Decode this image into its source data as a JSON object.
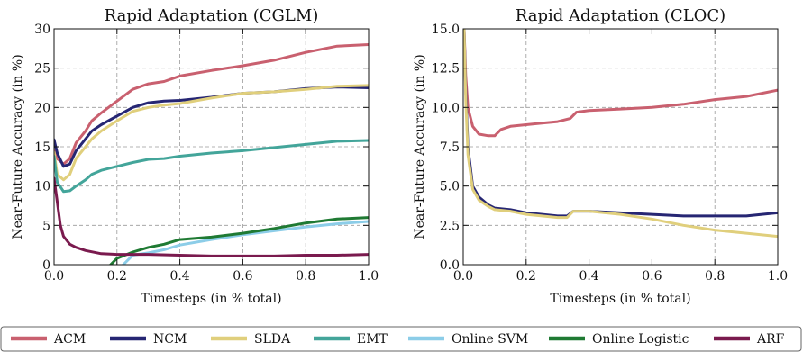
{
  "legend": {
    "items": [
      {
        "name": "ACM",
        "color": "#c9606f"
      },
      {
        "name": "NCM",
        "color": "#262673"
      },
      {
        "name": "SLDA",
        "color": "#e0cf7c"
      },
      {
        "name": "EMT",
        "color": "#43a59a"
      },
      {
        "name": "Online SVM",
        "color": "#8ccde8"
      },
      {
        "name": "Online Logistic",
        "color": "#1f7a33"
      },
      {
        "name": "ARF",
        "color": "#7a1a4e"
      }
    ]
  },
  "chart_data": [
    {
      "type": "line",
      "title": "Rapid Adaptation (CGLM)",
      "xlabel": "Timesteps (in % total)",
      "ylabel": "Near-Future Accuracy (in %)",
      "xlim": [
        0.0,
        1.0
      ],
      "ylim": [
        0,
        30
      ],
      "xticks": [
        "0.0",
        "0.2",
        "0.4",
        "0.6",
        "0.8",
        "1.0"
      ],
      "yticks": [
        "0",
        "5",
        "10",
        "15",
        "20",
        "25",
        "30"
      ],
      "grid": true,
      "series": [
        {
          "name": "ACM",
          "x": [
            0.0,
            0.01,
            0.03,
            0.05,
            0.07,
            0.1,
            0.12,
            0.15,
            0.2,
            0.25,
            0.3,
            0.35,
            0.4,
            0.5,
            0.6,
            0.7,
            0.8,
            0.9,
            1.0
          ],
          "y": [
            14.5,
            13.5,
            12.8,
            13.5,
            15.5,
            17.0,
            18.3,
            19.3,
            20.8,
            22.3,
            23.0,
            23.3,
            24.0,
            24.7,
            25.3,
            26.0,
            27.0,
            27.8,
            28.0
          ]
        },
        {
          "name": "NCM",
          "x": [
            0.0,
            0.01,
            0.03,
            0.05,
            0.07,
            0.1,
            0.12,
            0.15,
            0.2,
            0.25,
            0.3,
            0.35,
            0.4,
            0.5,
            0.6,
            0.7,
            0.8,
            0.9,
            1.0
          ],
          "y": [
            15.9,
            14.2,
            12.5,
            12.8,
            14.5,
            16.0,
            17.0,
            17.8,
            18.9,
            20.0,
            20.6,
            20.8,
            20.9,
            21.3,
            21.8,
            22.0,
            22.4,
            22.6,
            22.5
          ]
        },
        {
          "name": "SLDA",
          "x": [
            0.0,
            0.01,
            0.03,
            0.05,
            0.07,
            0.1,
            0.12,
            0.15,
            0.2,
            0.25,
            0.3,
            0.35,
            0.4,
            0.5,
            0.6,
            0.7,
            0.8,
            0.9,
            1.0
          ],
          "y": [
            14.3,
            11.5,
            10.8,
            11.5,
            13.5,
            15.0,
            16.0,
            17.0,
            18.3,
            19.5,
            20.0,
            20.3,
            20.5,
            21.2,
            21.8,
            22.0,
            22.3,
            22.7,
            22.8
          ]
        },
        {
          "name": "EMT",
          "x": [
            0.0,
            0.01,
            0.03,
            0.05,
            0.07,
            0.1,
            0.12,
            0.15,
            0.2,
            0.25,
            0.3,
            0.35,
            0.4,
            0.5,
            0.6,
            0.7,
            0.8,
            0.9,
            1.0
          ],
          "y": [
            13.8,
            10.5,
            9.3,
            9.4,
            10.0,
            10.8,
            11.5,
            12.0,
            12.5,
            13.0,
            13.4,
            13.5,
            13.8,
            14.2,
            14.5,
            14.9,
            15.3,
            15.7,
            15.8
          ]
        },
        {
          "name": "Online SVM",
          "x": [
            0.22,
            0.25,
            0.3,
            0.35,
            0.4,
            0.5,
            0.6,
            0.7,
            0.8,
            0.9,
            1.0
          ],
          "y": [
            0.0,
            1.2,
            1.5,
            1.9,
            2.5,
            3.2,
            3.8,
            4.3,
            4.8,
            5.2,
            5.5
          ]
        },
        {
          "name": "Online Logistic",
          "x": [
            0.18,
            0.2,
            0.25,
            0.3,
            0.35,
            0.4,
            0.5,
            0.6,
            0.7,
            0.8,
            0.9,
            1.0
          ],
          "y": [
            0.0,
            0.8,
            1.6,
            2.2,
            2.6,
            3.2,
            3.5,
            4.0,
            4.6,
            5.3,
            5.8,
            6.0
          ]
        },
        {
          "name": "ARF",
          "x": [
            0.0,
            0.01,
            0.02,
            0.03,
            0.05,
            0.07,
            0.1,
            0.15,
            0.2,
            0.3,
            0.4,
            0.5,
            0.6,
            0.7,
            0.8,
            0.9,
            1.0
          ],
          "y": [
            11.0,
            8.0,
            5.0,
            3.6,
            2.6,
            2.2,
            1.8,
            1.4,
            1.3,
            1.3,
            1.2,
            1.1,
            1.1,
            1.1,
            1.2,
            1.2,
            1.3
          ]
        }
      ]
    },
    {
      "type": "line",
      "title": "Rapid Adaptation (CLOC)",
      "xlabel": "Timesteps (in % total)",
      "ylabel": "Near-Future Accuracy (in %)",
      "xlim": [
        0.0,
        1.0
      ],
      "ylim": [
        0.0,
        15.0
      ],
      "xticks": [
        "0.0",
        "0.2",
        "0.4",
        "0.6",
        "0.8",
        "1.0"
      ],
      "yticks": [
        "0.0",
        "2.5",
        "5.0",
        "7.5",
        "10.0",
        "12.5",
        "15.0"
      ],
      "grid": true,
      "series": [
        {
          "name": "ACM",
          "x": [
            0.003,
            0.008,
            0.015,
            0.03,
            0.05,
            0.08,
            0.1,
            0.12,
            0.15,
            0.2,
            0.25,
            0.3,
            0.34,
            0.36,
            0.4,
            0.5,
            0.6,
            0.7,
            0.8,
            0.9,
            1.0
          ],
          "y": [
            15.0,
            12.0,
            10.0,
            8.8,
            8.3,
            8.2,
            8.2,
            8.6,
            8.8,
            8.9,
            9.0,
            9.1,
            9.3,
            9.7,
            9.8,
            9.9,
            10.0,
            10.2,
            10.5,
            10.7,
            11.1
          ]
        },
        {
          "name": "NCM",
          "x": [
            0.003,
            0.008,
            0.015,
            0.03,
            0.05,
            0.08,
            0.1,
            0.15,
            0.2,
            0.25,
            0.3,
            0.33,
            0.35,
            0.4,
            0.5,
            0.6,
            0.7,
            0.8,
            0.9,
            1.0
          ],
          "y": [
            15.0,
            11.0,
            7.5,
            5.0,
            4.3,
            3.8,
            3.6,
            3.5,
            3.3,
            3.2,
            3.1,
            3.1,
            3.4,
            3.4,
            3.3,
            3.2,
            3.1,
            3.1,
            3.1,
            3.3
          ]
        },
        {
          "name": "SLDA",
          "x": [
            0.003,
            0.008,
            0.015,
            0.03,
            0.05,
            0.08,
            0.1,
            0.15,
            0.2,
            0.25,
            0.3,
            0.33,
            0.35,
            0.4,
            0.5,
            0.6,
            0.7,
            0.8,
            0.9,
            1.0
          ],
          "y": [
            15.0,
            10.5,
            7.0,
            4.8,
            4.1,
            3.7,
            3.5,
            3.4,
            3.2,
            3.1,
            3.0,
            3.0,
            3.4,
            3.4,
            3.2,
            2.9,
            2.5,
            2.2,
            2.0,
            1.8
          ]
        }
      ]
    }
  ]
}
